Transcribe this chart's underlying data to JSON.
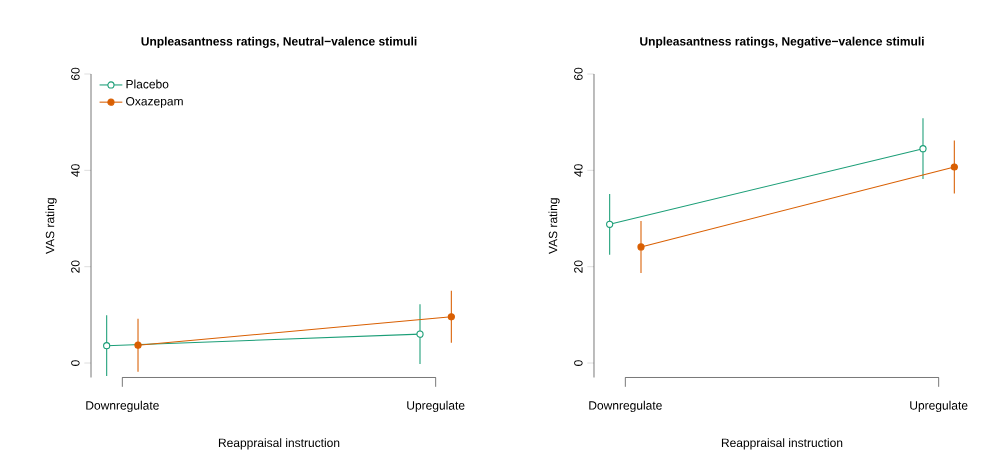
{
  "chart_data": [
    {
      "type": "line",
      "title": "Unpleasantness ratings, Neutral−valence stimuli",
      "xlabel": "Reappraisal instruction",
      "ylabel": "VAS rating",
      "categories": [
        "Downregulate",
        "Upregulate"
      ],
      "ylim": [
        -3,
        60
      ],
      "yticks": [
        0,
        20,
        40,
        60
      ],
      "legend": "top left",
      "marker": "circle",
      "series": [
        {
          "name": "Placebo",
          "color": "#1b9e77",
          "values": [
            3.6,
            6.0
          ],
          "errors": [
            6.3,
            6.2
          ]
        },
        {
          "name": "Oxazepam",
          "color": "#d95f02",
          "values": [
            3.7,
            9.6
          ],
          "errors": [
            5.5,
            5.4
          ]
        }
      ]
    },
    {
      "type": "line",
      "title": "Unpleasantness ratings, Negative−valence stimuli",
      "xlabel": "Reappraisal instruction",
      "ylabel": "VAS rating",
      "categories": [
        "Downregulate",
        "Upregulate"
      ],
      "ylim": [
        -3,
        60
      ],
      "yticks": [
        0,
        20,
        40,
        60
      ],
      "marker": "circle",
      "series": [
        {
          "color": "#1b9e77",
          "values": [
            28.8,
            44.5
          ],
          "errors": [
            6.3,
            6.3
          ]
        },
        {
          "color": "#d95f02",
          "values": [
            24.1,
            40.7
          ],
          "errors": [
            5.4,
            5.5
          ]
        }
      ]
    }
  ]
}
